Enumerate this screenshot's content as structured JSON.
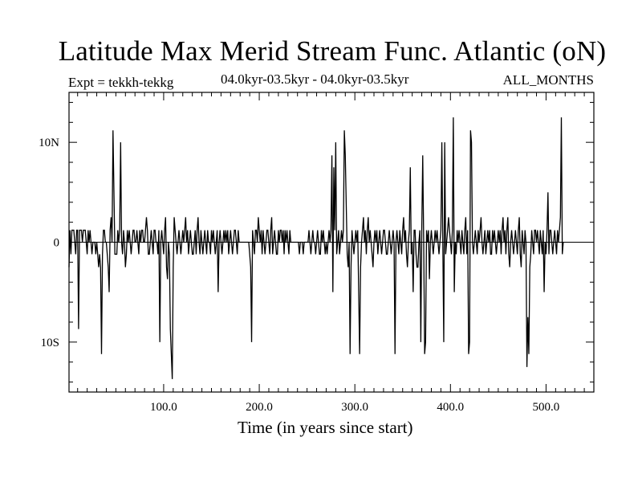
{
  "chart_data": {
    "type": "line",
    "title": "Latitude Max Merid Stream Func. Atlantic (oN)",
    "subtitle_left": "Expt = tekkh-tekkg",
    "subtitle_center": "04.0kyr-03.5kyr - 04.0kyr-03.5kyr",
    "subtitle_right": "ALL_MONTHS",
    "xlabel": "Time (in years since start)",
    "ylabel": "",
    "xlim": [
      1,
      550
    ],
    "ylim": [
      -15,
      15
    ],
    "x_ticks": [
      100,
      200,
      300,
      400,
      500
    ],
    "x_tick_labels": [
      "100.0",
      "200.0",
      "300.0",
      "400.0",
      "500.0"
    ],
    "y_ticks": [
      -10,
      0,
      10
    ],
    "y_tick_labels": [
      "10S",
      "0",
      "10N"
    ],
    "series": [
      {
        "name": "tekkh-tekkg",
        "x_start": 1,
        "x_step": 1,
        "values": [
          -2.5,
          1.2,
          -1.2,
          1.2,
          1.2,
          1.2,
          0,
          -1.2,
          1.2,
          1.2,
          -8.7,
          1.2,
          1.2,
          1.2,
          0,
          1.2,
          1.2,
          1.2,
          0,
          -1.2,
          1.2,
          0,
          1.2,
          0,
          -1.2,
          0,
          0,
          0,
          -1.2,
          0,
          -1.2,
          -2.5,
          -1.2,
          -2.5,
          -11.2,
          -1.2,
          1.2,
          1.2,
          0,
          0,
          -1.2,
          -2.5,
          -5,
          1.2,
          2.5,
          0,
          11.2,
          5,
          -1.2,
          -1.2,
          -1.2,
          1.2,
          0,
          1.2,
          10,
          0,
          -1.2,
          1.2,
          0,
          -2.5,
          -1.2,
          1.2,
          0,
          1.2,
          0,
          -1.2,
          0,
          1.2,
          1.2,
          0,
          0,
          1.2,
          0,
          -1.2,
          1.2,
          0,
          1.2,
          1.2,
          0,
          0,
          1.2,
          2.5,
          1.2,
          -1.2,
          -1.2,
          0,
          1.2,
          0,
          -1.2,
          1.2,
          1.2,
          0,
          0,
          -1.2,
          1.2,
          -10,
          0,
          1.2,
          0,
          -1.2,
          1.2,
          2.5,
          -2.5,
          -3.7,
          0,
          -1.2,
          -8.7,
          -11.2,
          -13.7,
          -2.5,
          2.5,
          1.2,
          0,
          -1.2,
          0,
          1.2,
          0,
          -1.2,
          0,
          1.2,
          0,
          1.2,
          2.5,
          0,
          1.2,
          -1.2,
          0,
          1.2,
          0,
          -1.2,
          -1.2,
          0,
          1.2,
          -1.2,
          1.2,
          2.5,
          0,
          -1.2,
          1.2,
          0,
          -1.2,
          0,
          1.2,
          0,
          -1.2,
          1.2,
          0,
          0,
          -1.2,
          1.2,
          0,
          1.2,
          0,
          -1.2,
          0,
          1.2,
          -5,
          0,
          1.2,
          0,
          -1.2,
          0,
          1.2,
          0,
          1.2,
          0,
          1.2,
          -1.2,
          0,
          1.2,
          0,
          -1.2,
          0,
          1.2,
          1.2,
          0,
          -1.2,
          1.2,
          0,
          0,
          0,
          0,
          0,
          0,
          0,
          0,
          0,
          0,
          0,
          -1.2,
          -2.5,
          -10,
          1.2,
          0,
          -1.2,
          1.2,
          1.2,
          0,
          2.5,
          1.2,
          0,
          1.2,
          -1.2,
          1.2,
          0,
          -1.2,
          0,
          1.2,
          1.2,
          0,
          -1.2,
          1.2,
          2.5,
          -1.2,
          0,
          1.2,
          0,
          -1.2,
          -1.2,
          1.2,
          0,
          1.2,
          1.2,
          0,
          1.2,
          -1.2,
          1.2,
          0,
          1.2,
          0,
          -1.2,
          1.2,
          0,
          0,
          0,
          0,
          0,
          0,
          0,
          0,
          0,
          -1.2,
          0,
          0,
          0,
          -1.2,
          0,
          0,
          0,
          0,
          0,
          1.2,
          0,
          -1.2,
          0,
          1.2,
          0,
          0,
          -1.2,
          0,
          1.2,
          0,
          -1.2,
          -1.2,
          1.2,
          0,
          1.2,
          0,
          -1.2,
          0,
          -1.2,
          0,
          1.2,
          0,
          1.2,
          8.7,
          -5,
          7.5,
          1.2,
          10,
          -1.2,
          0,
          1.2,
          -1.2,
          0,
          1.2,
          0,
          1.2,
          11.2,
          8.7,
          3.7,
          -1.2,
          -2.5,
          0,
          -11.2,
          -2.5,
          1.2,
          0,
          -1.2,
          0,
          1.2,
          0,
          1.2,
          -5,
          -11.2,
          -2.5,
          0,
          1.2,
          2.5,
          0,
          1.2,
          -1.2,
          1.2,
          2.5,
          0,
          1.2,
          0,
          -1.2,
          -2.5,
          0,
          1.2,
          0,
          1.2,
          -1.2,
          0,
          1.2,
          0,
          -1.2,
          0,
          1.2,
          1.2,
          0,
          -1.2,
          -1.2,
          0,
          1.2,
          0,
          -1.2,
          0,
          1.2,
          0,
          -11.2,
          0,
          1.2,
          0,
          -1.2,
          1.2,
          0,
          -1.2,
          1.2,
          2.5,
          0,
          1.2,
          -1.2,
          -2.5,
          0,
          1.2,
          7.5,
          -1.2,
          0,
          -5,
          1.2,
          1.2,
          -1.2,
          -2.5,
          -2.5,
          0,
          1.2,
          -10,
          1.2,
          8.7,
          0,
          -11.2,
          -10,
          1.2,
          0,
          1.2,
          -3.7,
          0,
          1.2,
          0,
          -1.2,
          0,
          1.2,
          0,
          1.2,
          0,
          -1.2,
          0,
          1.2,
          10,
          0,
          -10,
          10,
          -1.2,
          0,
          1.2,
          2.5,
          1.2,
          0,
          -1.2,
          1.2,
          12.5,
          -5,
          0,
          -1.2,
          1.2,
          0,
          1.2,
          0,
          -1.2,
          1.2,
          0,
          -1.2,
          1.2,
          2.5,
          -1.2,
          1.2,
          -11.2,
          -10,
          11.2,
          10,
          0,
          -1.2,
          0,
          1.2,
          0,
          -1.2,
          1.2,
          0,
          1.2,
          2.5,
          0,
          -1.2,
          0,
          1.2,
          -1.2,
          0,
          1.2,
          0,
          1.2,
          -1.2,
          -1.2,
          1.2,
          0,
          1.2,
          0,
          -1.2,
          0,
          1.2,
          0,
          1.2,
          -1.2,
          1.2,
          2.5,
          0,
          1.2,
          -1.2,
          1.2,
          2.5,
          -1.2,
          -2.5,
          0,
          1.2,
          0,
          -1.2,
          0,
          1.2,
          0,
          -1.2,
          1.2,
          2.5,
          -1.2,
          -2.5,
          1.2,
          0,
          -1.2,
          1.2,
          0,
          -12.5,
          -7.5,
          -11.2,
          -2.5,
          -1.2,
          1.2,
          0,
          -1.2,
          1.2,
          1.2,
          0,
          1.2,
          0,
          -1.2,
          1.2,
          0,
          -1.2,
          1.2,
          -5,
          0,
          -1.2,
          1.2,
          5,
          -1.2,
          1.2,
          1.2,
          0,
          -1.2,
          0,
          1.2,
          0,
          -1.2,
          1.2,
          0,
          1.2,
          2.5,
          12.5,
          -1.2,
          0
        ]
      }
    ]
  }
}
